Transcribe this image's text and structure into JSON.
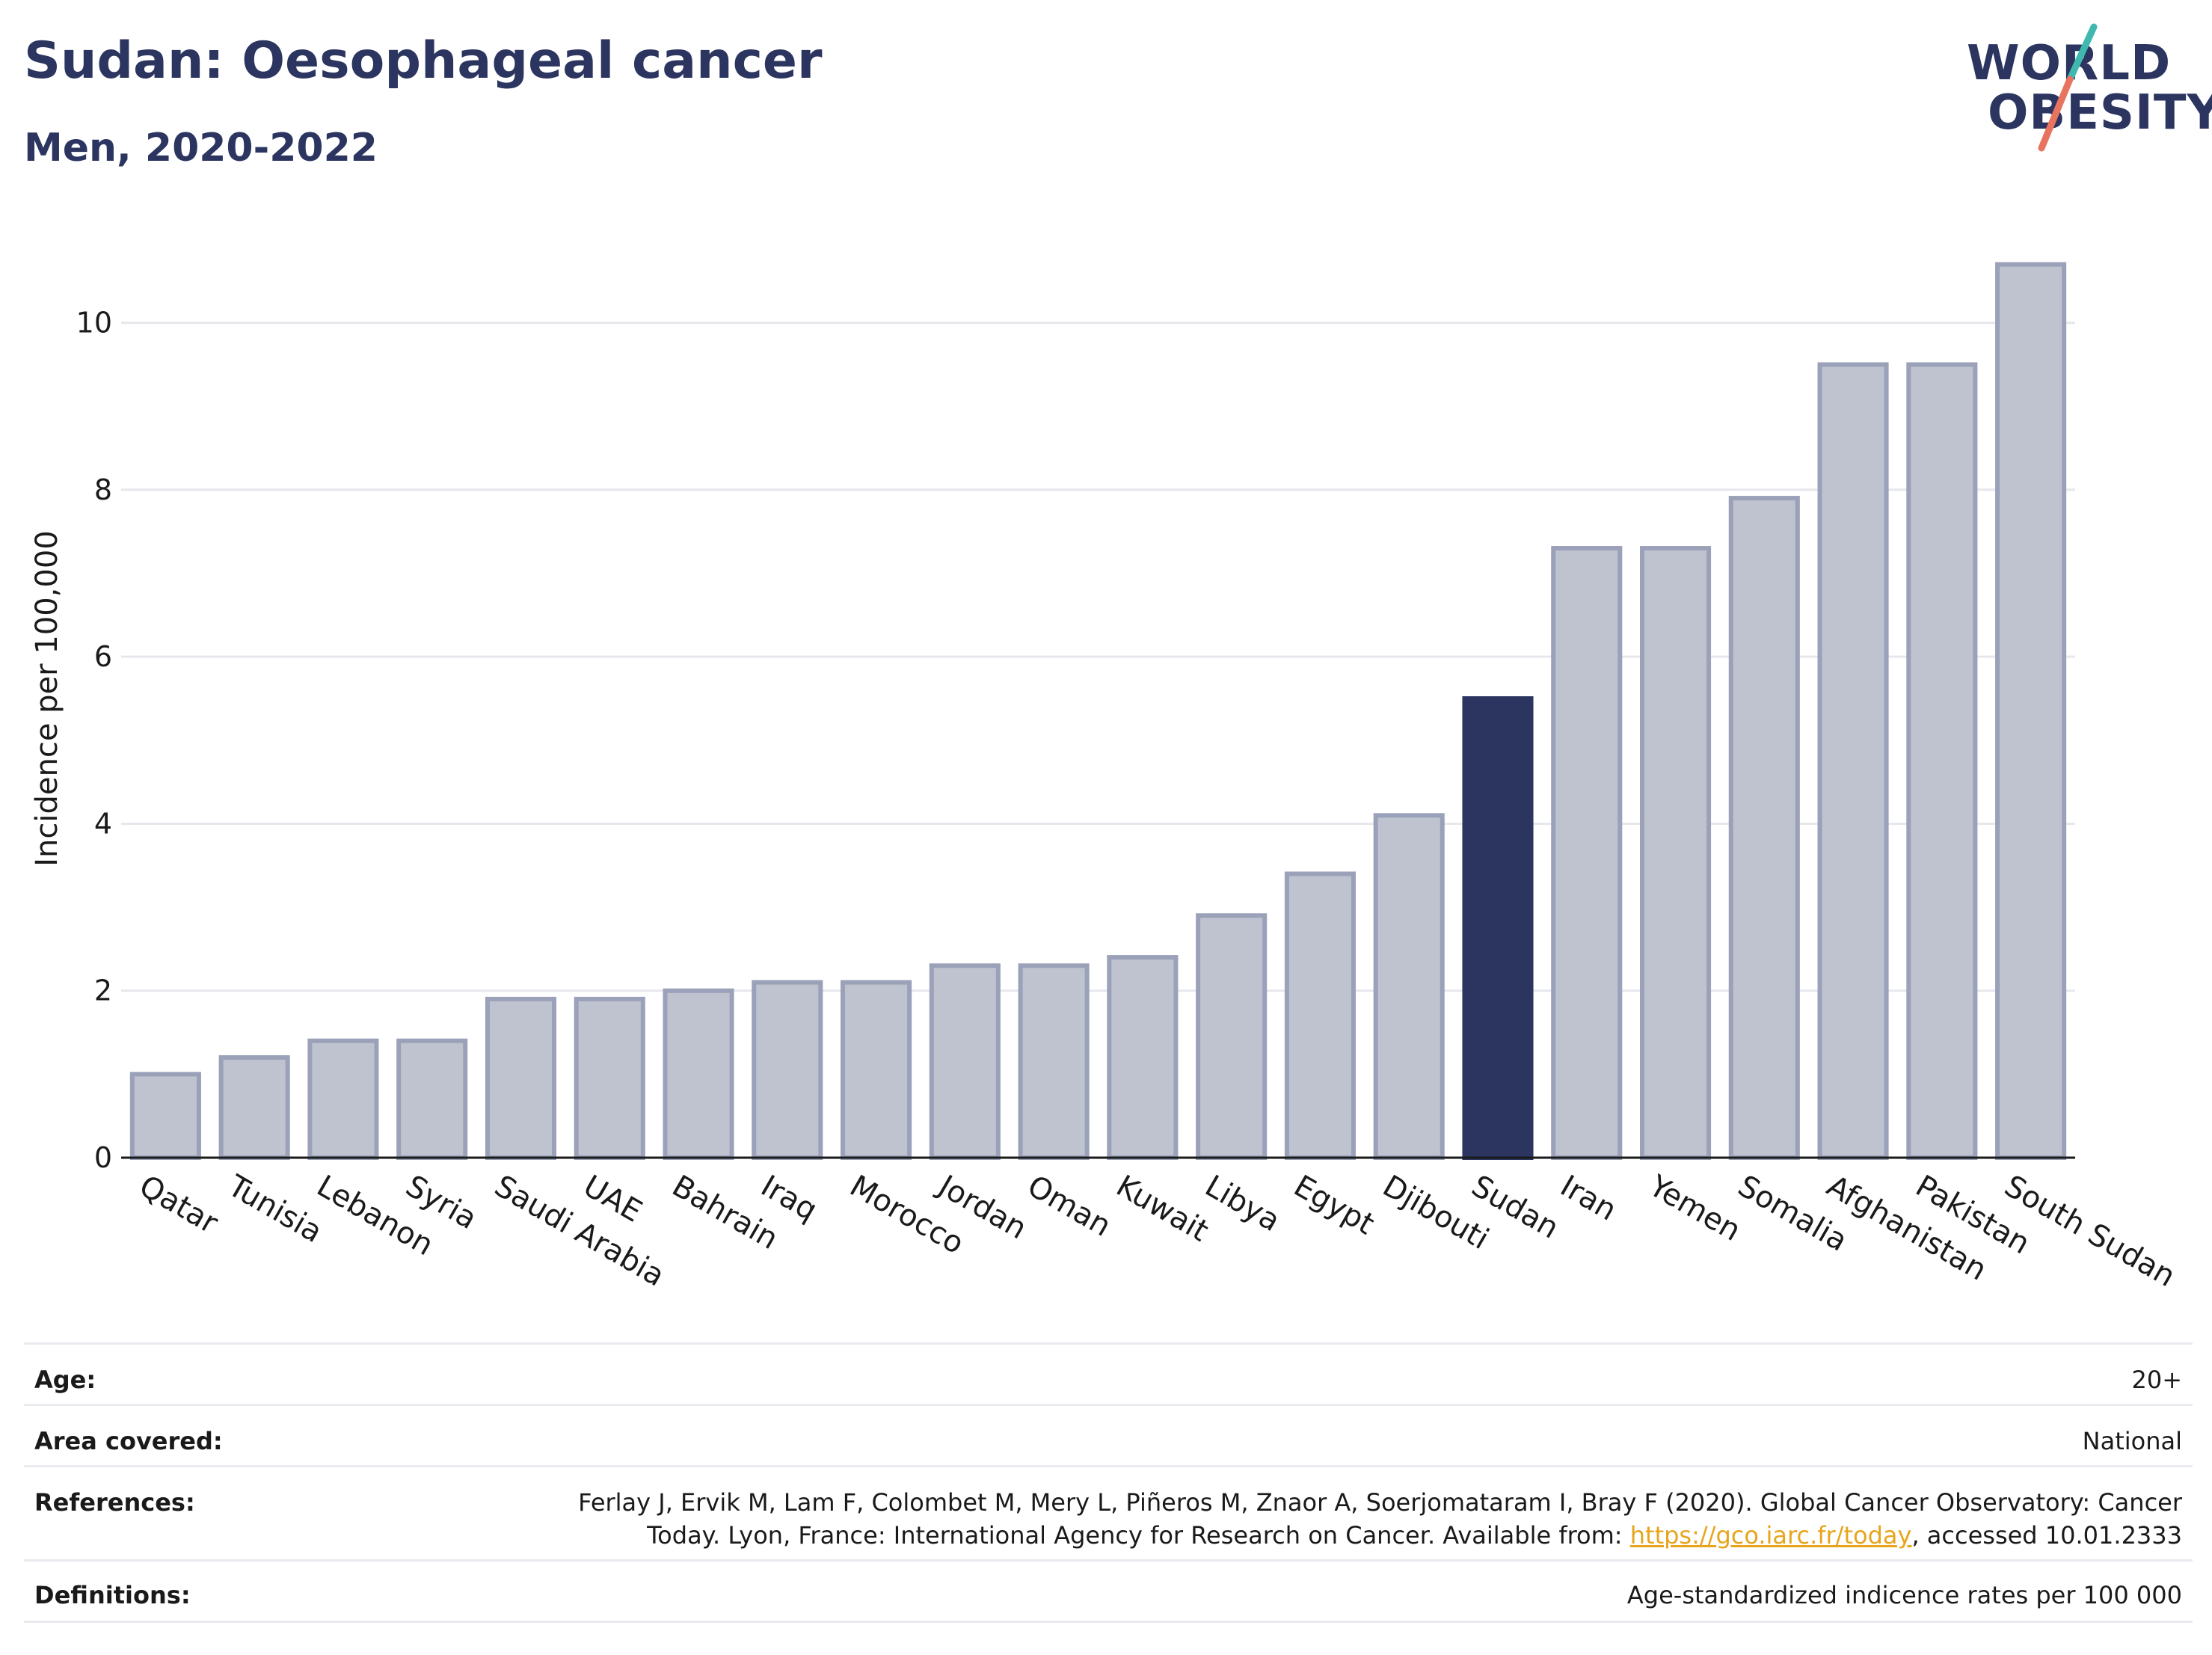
{
  "header": {
    "title": "Sudan: Oesophageal cancer",
    "subtitle": "Men, 2020-2022"
  },
  "logo": {
    "line1": "WORLD",
    "line2": "OBESITY"
  },
  "colors": {
    "bar": "#bfc3d0",
    "bar_border": "#9aa1b8",
    "highlight": "#2b3560",
    "grid": "#e6e8ee",
    "link": "#e7a51c"
  },
  "chart_data": {
    "type": "bar",
    "title": "Sudan: Oesophageal cancer",
    "subtitle": "Men, 2020-2022",
    "xlabel": "",
    "ylabel": "Incidence per 100,000",
    "ylim": [
      0,
      11
    ],
    "yticks": [
      0,
      2,
      4,
      6,
      8,
      10
    ],
    "grid": true,
    "highlight": "Sudan",
    "categories": [
      "Qatar",
      "Tunisia",
      "Lebanon",
      "Syria",
      "Saudi Arabia",
      "UAE",
      "Bahrain",
      "Iraq",
      "Morocco",
      "Jordan",
      "Oman",
      "Kuwait",
      "Libya",
      "Egypt",
      "Djibouti",
      "Sudan",
      "Iran",
      "Yemen",
      "Somalia",
      "Afghanistan",
      "Pakistan",
      "South Sudan"
    ],
    "values": [
      1.0,
      1.2,
      1.4,
      1.4,
      1.9,
      1.9,
      2.0,
      2.1,
      2.1,
      2.3,
      2.3,
      2.4,
      2.9,
      3.4,
      4.1,
      5.5,
      7.3,
      7.3,
      7.9,
      9.5,
      9.5,
      10.7
    ]
  },
  "meta": {
    "age_label": "Age:",
    "age_value": "20+",
    "area_label": "Area covered:",
    "area_value": "National",
    "references_label": "References:",
    "references_line1": "Ferlay J, Ervik M, Lam F, Colombet M, Mery L, Piñeros M, Znaor A, Soerjomataram I, Bray F (2020). Global Cancer Observatory: Cancer",
    "references_line2_pre": "Today. Lyon, France: International Agency for Research on Cancer. Available from: ",
    "references_link": "https://gco.iarc.fr/today",
    "references_line2_post": ", accessed 10.01.2333",
    "definitions_label": "Definitions:",
    "definitions_value": "Age-standardized indicence rates per 100 000"
  }
}
